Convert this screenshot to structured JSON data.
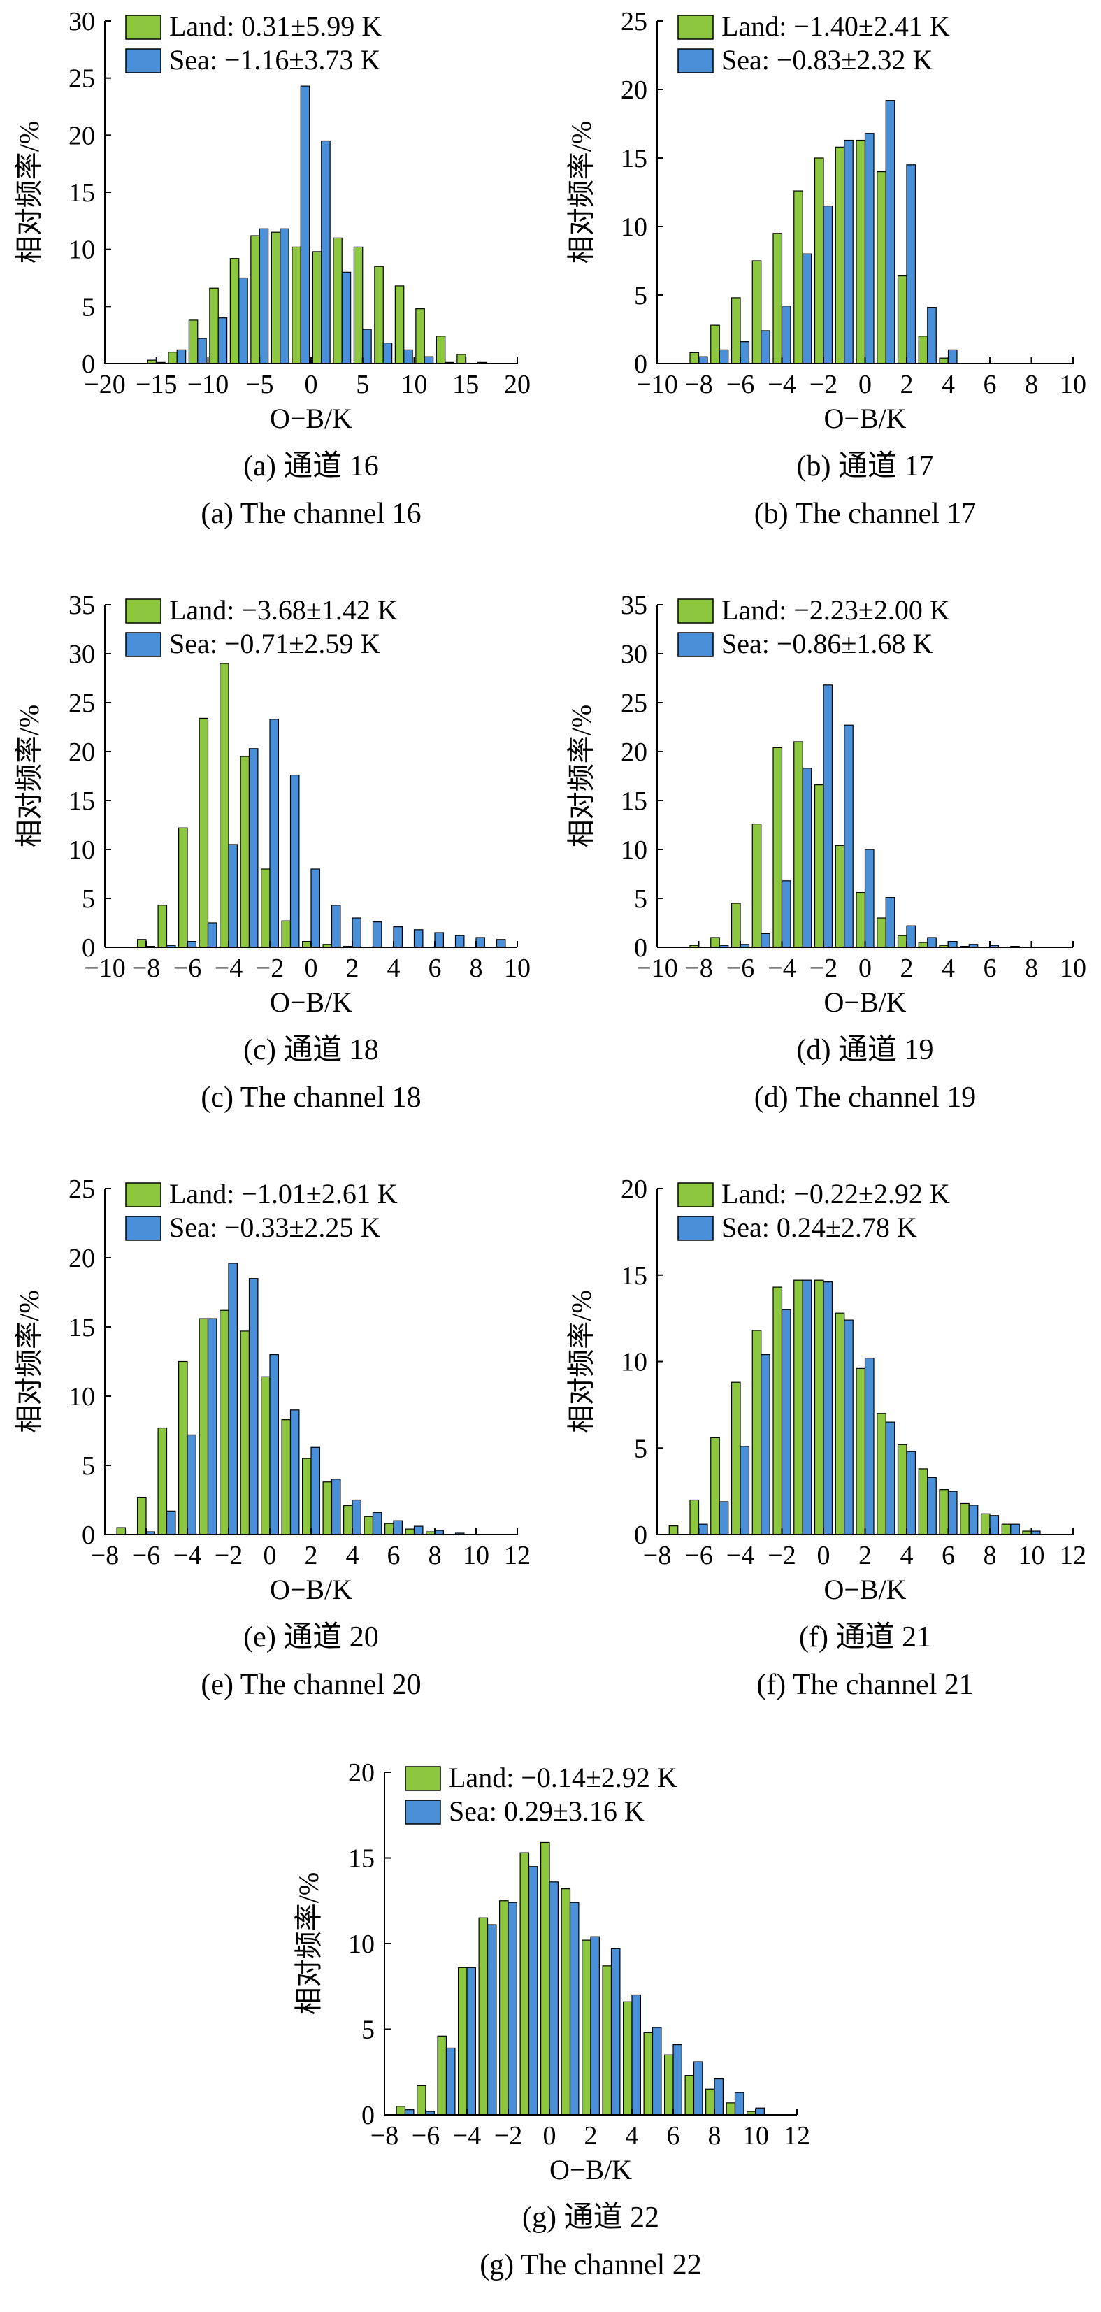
{
  "colors": {
    "land": "#8dc63f",
    "sea": "#4a90d9",
    "axis": "#000000"
  },
  "y_axis_label": "相对频率/%",
  "x_axis_label": "O−B/K",
  "chart_data": [
    {
      "type": "bar",
      "caption_cn": "(a) 通道 16",
      "caption_en": "(a) The channel 16",
      "xlabel": "O−B/K",
      "ylabel": "相对频率/%",
      "xlim": [
        -20,
        20
      ],
      "ylim": [
        0,
        30
      ],
      "xticks": [
        -20,
        -15,
        -10,
        -5,
        0,
        5,
        10,
        15,
        20
      ],
      "xtick_labels": [
        "−20",
        "−15",
        "−10",
        "−5",
        "0",
        "5",
        "10",
        "15",
        "20"
      ],
      "yticks": [
        0,
        5,
        10,
        15,
        20,
        25,
        30
      ],
      "bin_width": 2,
      "bins": [
        -15,
        -13,
        -11,
        -9,
        -7,
        -5,
        -3,
        -1,
        1,
        3,
        5,
        7,
        9,
        11,
        13,
        15,
        17
      ],
      "legend": "top-left",
      "series": [
        {
          "name": "Land: 0.31±5.99 K",
          "values": [
            0.3,
            1.0,
            3.8,
            6.6,
            9.2,
            11.2,
            11.5,
            10.2,
            9.8,
            11.0,
            10.2,
            8.5,
            6.8,
            4.8,
            2.4,
            0.8,
            0.1
          ]
        },
        {
          "name": "Sea: −1.16±3.73 K",
          "values": [
            0.1,
            1.2,
            2.2,
            4.0,
            7.5,
            11.8,
            11.8,
            24.3,
            19.5,
            8.0,
            3.0,
            1.8,
            1.2,
            0.6,
            0.1,
            0.0,
            0.0
          ]
        }
      ]
    },
    {
      "type": "bar",
      "caption_cn": "(b) 通道 17",
      "caption_en": "(b) The channel 17",
      "xlabel": "O−B/K",
      "ylabel": "相对频率/%",
      "xlim": [
        -10,
        10
      ],
      "ylim": [
        0,
        25
      ],
      "xticks": [
        -10,
        -8,
        -6,
        -4,
        -2,
        0,
        2,
        4,
        6,
        8,
        10
      ],
      "xtick_labels": [
        "−10",
        "−8",
        "−6",
        "−4",
        "−2",
        "0",
        "2",
        "4",
        "6",
        "8",
        "10"
      ],
      "yticks": [
        0,
        5,
        10,
        15,
        20,
        25
      ],
      "bin_width": 1,
      "bins": [
        -8,
        -7,
        -6,
        -5,
        -4,
        -3,
        -2,
        -1,
        0,
        1,
        2,
        3,
        4
      ],
      "legend": "top-left",
      "series": [
        {
          "name": "Land: −1.40±2.41 K",
          "values": [
            0.8,
            2.8,
            4.8,
            7.5,
            9.5,
            12.6,
            15.0,
            15.8,
            16.3,
            14.0,
            6.4,
            2.0,
            0.4
          ]
        },
        {
          "name": "Sea: −0.83±2.32 K",
          "values": [
            0.5,
            1.0,
            1.6,
            2.4,
            4.2,
            8.0,
            11.5,
            16.3,
            16.8,
            19.2,
            14.5,
            4.1,
            1.0
          ]
        }
      ]
    },
    {
      "type": "bar",
      "caption_cn": "(c) 通道 18",
      "caption_en": "(c) The channel 18",
      "xlabel": "O−B/K",
      "ylabel": "相对频率/%",
      "xlim": [
        -10,
        10
      ],
      "ylim": [
        0,
        35
      ],
      "xticks": [
        -10,
        -8,
        -6,
        -4,
        -2,
        0,
        2,
        4,
        6,
        8,
        10
      ],
      "xtick_labels": [
        "−10",
        "−8",
        "−6",
        "−4",
        "−2",
        "0",
        "2",
        "4",
        "6",
        "8",
        "10"
      ],
      "yticks": [
        0,
        5,
        10,
        15,
        20,
        25,
        30,
        35
      ],
      "bin_width": 1,
      "bins": [
        -8,
        -7,
        -6,
        -5,
        -4,
        -3,
        -2,
        -1,
        0,
        1,
        2,
        3,
        4,
        5,
        6,
        7,
        8,
        9
      ],
      "legend": "top-left",
      "series": [
        {
          "name": "Land: −3.68±1.42 K",
          "values": [
            0.8,
            4.3,
            12.2,
            23.4,
            29.0,
            19.5,
            8.0,
            2.7,
            0.6,
            0.3,
            0.1,
            0.0,
            0.0,
            0.0,
            0.0,
            0.0,
            0.0,
            0.0
          ]
        },
        {
          "name": "Sea: −0.71±2.59 K",
          "values": [
            0.1,
            0.2,
            0.6,
            2.5,
            10.5,
            20.3,
            23.3,
            17.6,
            8.0,
            4.3,
            3.0,
            2.6,
            2.1,
            1.8,
            1.5,
            1.2,
            1.0,
            0.8
          ]
        }
      ]
    },
    {
      "type": "bar",
      "caption_cn": "(d) 通道 19",
      "caption_en": "(d) The channel 19",
      "xlabel": "O−B/K",
      "ylabel": "相对频率/%",
      "xlim": [
        -10,
        10
      ],
      "ylim": [
        0,
        35
      ],
      "xticks": [
        -10,
        -8,
        -6,
        -4,
        -2,
        0,
        2,
        4,
        6,
        8,
        10
      ],
      "xtick_labels": [
        "−10",
        "−8",
        "−6",
        "−4",
        "−2",
        "0",
        "2",
        "4",
        "6",
        "8",
        "10"
      ],
      "yticks": [
        0,
        5,
        10,
        15,
        20,
        25,
        30,
        35
      ],
      "bin_width": 1,
      "bins": [
        -8,
        -7,
        -6,
        -5,
        -4,
        -3,
        -2,
        -1,
        0,
        1,
        2,
        3,
        4,
        5,
        6,
        7
      ],
      "legend": "top-left",
      "series": [
        {
          "name": "Land: −2.23±2.00 K",
          "values": [
            0.2,
            1.0,
            4.5,
            12.6,
            20.4,
            21.0,
            16.6,
            10.4,
            5.6,
            3.0,
            1.2,
            0.5,
            0.2,
            0.1,
            0.0,
            0.0
          ]
        },
        {
          "name": "Sea: −0.86±1.68 K",
          "values": [
            0.0,
            0.2,
            0.3,
            1.4,
            6.8,
            18.3,
            26.8,
            22.7,
            10.0,
            5.1,
            2.2,
            1.0,
            0.6,
            0.3,
            0.2,
            0.1
          ]
        }
      ]
    },
    {
      "type": "bar",
      "caption_cn": "(e) 通道 20",
      "caption_en": "(e) The channel 20",
      "xlabel": "O−B/K",
      "ylabel": "相对频率/%",
      "xlim": [
        -8,
        12
      ],
      "ylim": [
        0,
        25
      ],
      "xticks": [
        -8,
        -6,
        -4,
        -2,
        0,
        2,
        4,
        6,
        8,
        10,
        12
      ],
      "xtick_labels": [
        "−8",
        "−6",
        "−4",
        "−2",
        "0",
        "2",
        "4",
        "6",
        "8",
        "10",
        "12"
      ],
      "yticks": [
        0,
        5,
        10,
        15,
        20,
        25
      ],
      "bin_width": 1,
      "bins": [
        -7,
        -6,
        -5,
        -4,
        -3,
        -2,
        -1,
        0,
        1,
        2,
        3,
        4,
        5,
        6,
        7,
        8,
        9
      ],
      "legend": "top-left",
      "series": [
        {
          "name": "Land: −1.01±2.61 K",
          "values": [
            0.5,
            2.7,
            7.7,
            12.5,
            15.6,
            16.2,
            14.7,
            11.4,
            8.3,
            5.5,
            3.8,
            2.1,
            1.3,
            0.8,
            0.4,
            0.2,
            0.0
          ]
        },
        {
          "name": "Sea: −0.33±2.25 K",
          "values": [
            0.0,
            0.2,
            1.7,
            7.2,
            15.6,
            19.6,
            18.5,
            13.0,
            9.0,
            6.3,
            4.0,
            2.5,
            1.6,
            1.0,
            0.6,
            0.3,
            0.1
          ]
        }
      ]
    },
    {
      "type": "bar",
      "caption_cn": "(f) 通道 21",
      "caption_en": "(f) The channel 21",
      "xlabel": "O−B/K",
      "ylabel": "相对频率/%",
      "xlim": [
        -8,
        12
      ],
      "ylim": [
        0,
        20
      ],
      "xticks": [
        -8,
        -6,
        -4,
        -2,
        0,
        2,
        4,
        6,
        8,
        10,
        12
      ],
      "xtick_labels": [
        "−8",
        "−6",
        "−4",
        "−2",
        "0",
        "2",
        "4",
        "6",
        "8",
        "10",
        "12"
      ],
      "yticks": [
        0,
        5,
        10,
        15,
        20
      ],
      "bin_width": 1,
      "bins": [
        -7,
        -6,
        -5,
        -4,
        -3,
        -2,
        -1,
        0,
        1,
        2,
        3,
        4,
        5,
        6,
        7,
        8,
        9,
        10
      ],
      "legend": "top-left",
      "series": [
        {
          "name": "Land: −0.22±2.92 K",
          "values": [
            0.5,
            2.0,
            5.6,
            8.8,
            11.8,
            14.3,
            14.7,
            14.7,
            12.8,
            9.6,
            7.0,
            5.2,
            3.8,
            2.6,
            1.8,
            1.2,
            0.6,
            0.2
          ]
        },
        {
          "name": "Sea: 0.24±2.78 K",
          "values": [
            0.0,
            0.6,
            1.9,
            5.1,
            10.4,
            13.0,
            14.7,
            14.6,
            12.4,
            10.2,
            6.5,
            4.8,
            3.3,
            2.5,
            1.7,
            1.1,
            0.6,
            0.2
          ]
        }
      ]
    },
    {
      "type": "bar",
      "caption_cn": "(g) 通道 22",
      "caption_en": "(g) The channel 22",
      "xlabel": "O−B/K",
      "ylabel": "相对频率/%",
      "xlim": [
        -8,
        12
      ],
      "ylim": [
        0,
        20
      ],
      "xticks": [
        -8,
        -6,
        -4,
        -2,
        0,
        2,
        4,
        6,
        8,
        10,
        12
      ],
      "xtick_labels": [
        "−8",
        "−6",
        "−4",
        "−2",
        "0",
        "2",
        "4",
        "6",
        "8",
        "10",
        "12"
      ],
      "yticks": [
        0,
        5,
        10,
        15,
        20
      ],
      "bin_width": 1,
      "bins": [
        -7,
        -6,
        -5,
        -4,
        -3,
        -2,
        -1,
        0,
        1,
        2,
        3,
        4,
        5,
        6,
        7,
        8,
        9,
        10
      ],
      "legend": "top-left",
      "series": [
        {
          "name": "Land: −0.14±2.92 K",
          "values": [
            0.5,
            1.7,
            4.6,
            8.6,
            11.5,
            12.5,
            15.3,
            15.9,
            13.2,
            10.2,
            8.7,
            6.6,
            4.8,
            3.5,
            2.3,
            1.5,
            0.7,
            0.2
          ]
        },
        {
          "name": "Sea: 0.29±3.16 K",
          "values": [
            0.3,
            0.2,
            3.9,
            8.6,
            11.1,
            12.4,
            14.5,
            13.6,
            12.4,
            10.4,
            9.7,
            7.0,
            5.1,
            4.1,
            3.1,
            2.1,
            1.3,
            0.4
          ]
        }
      ]
    }
  ]
}
